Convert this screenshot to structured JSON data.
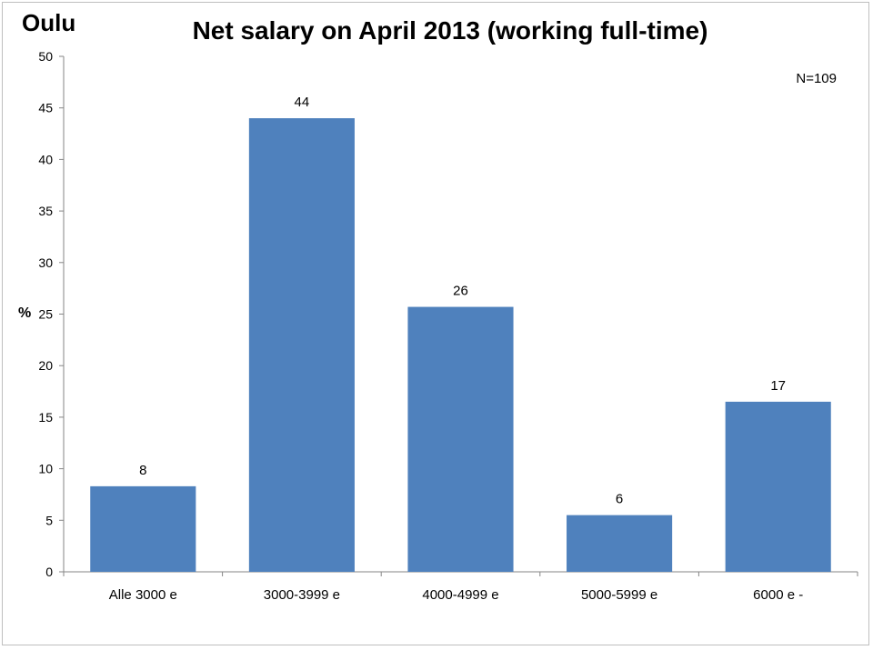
{
  "region": "Oulu",
  "sample_size": "N=109",
  "chart_data": {
    "type": "bar",
    "title": "Net salary on April 2013 (working full-time)",
    "xlabel": "",
    "ylabel": "%",
    "categories": [
      "Alle 3000 e",
      "3000-3999 e",
      "4000-4999 e",
      "5000-5999 e",
      "6000 e -"
    ],
    "values": [
      8.3,
      44.0,
      25.7,
      5.5,
      16.5
    ],
    "data_labels": [
      "8",
      "44",
      "26",
      "6",
      "17"
    ],
    "ylim": [
      0,
      50
    ],
    "yticks": [
      0,
      5,
      10,
      15,
      20,
      25,
      30,
      35,
      40,
      45,
      50
    ],
    "grid": false,
    "bar_color": "#4f81bd"
  }
}
